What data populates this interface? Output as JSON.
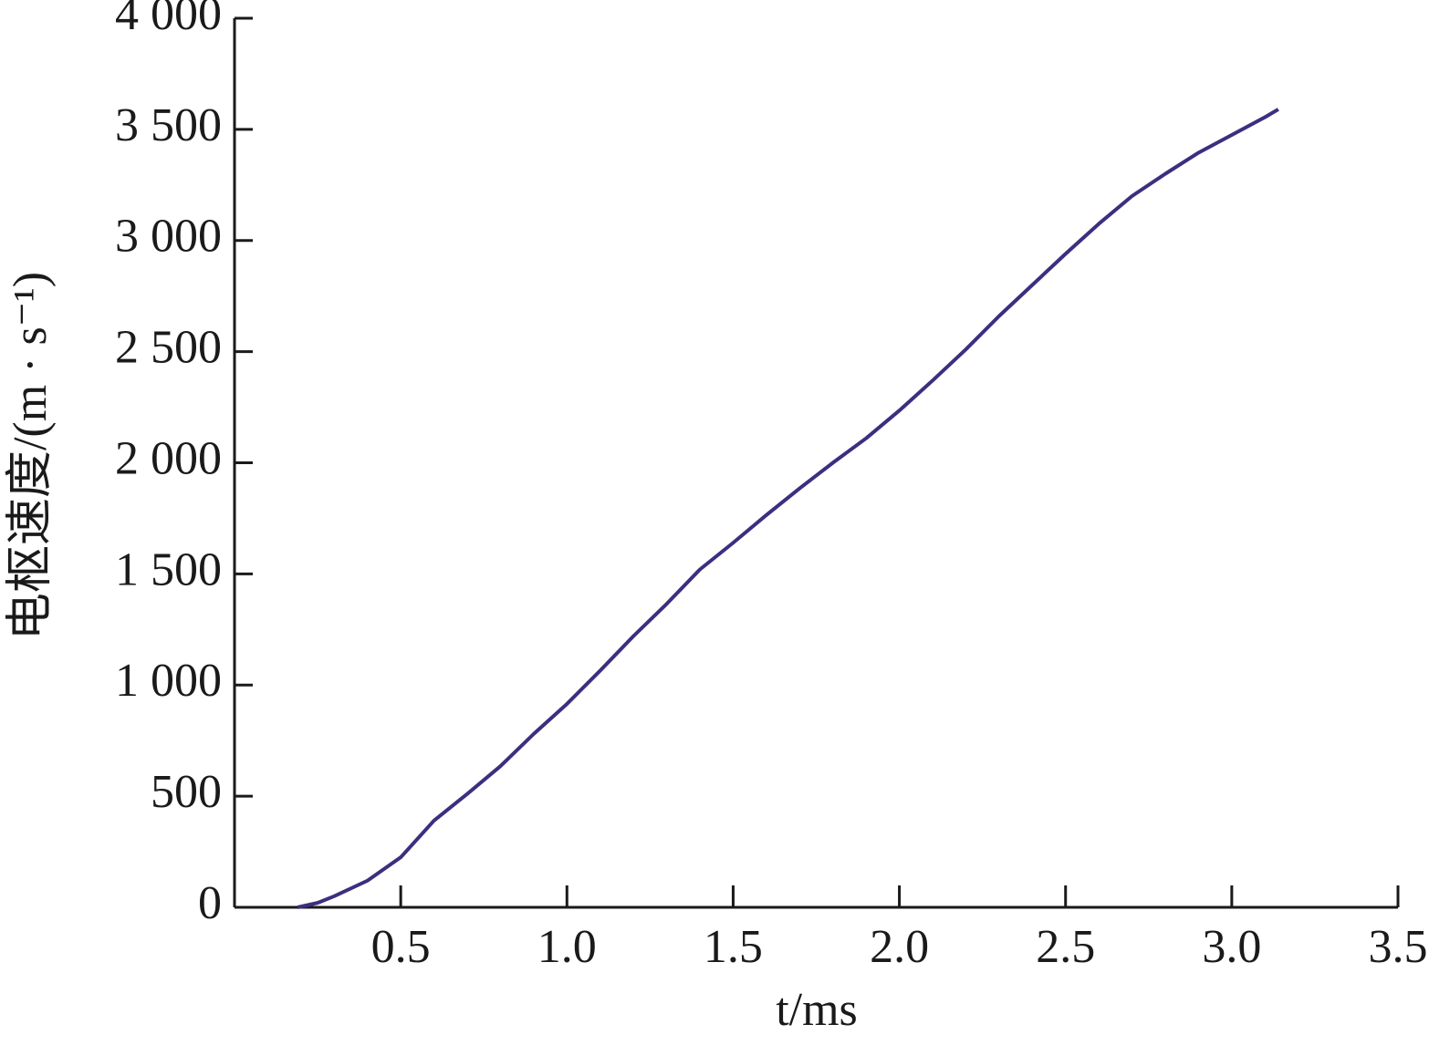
{
  "chart_data": {
    "type": "line",
    "xlabel": "t/ms",
    "ylabel": "电枢速度/(m · s⁻¹)",
    "xlim": [
      0,
      3.5
    ],
    "ylim": [
      0,
      4000
    ],
    "xticks": [
      0.5,
      {
        "value": 1,
        "label": "1.0"
      },
      1.5,
      {
        "value": 2,
        "label": "2.0"
      },
      2.5,
      {
        "value": 3,
        "label": "3.0"
      },
      3.5
    ],
    "yticks": [
      0,
      500,
      {
        "value": 1000,
        "label": "1 000"
      },
      {
        "value": 1500,
        "label": "1 500"
      },
      {
        "value": 2000,
        "label": "2 000"
      },
      {
        "value": 2500,
        "label": "2 500"
      },
      {
        "value": 3000,
        "label": "3 000"
      },
      {
        "value": 3500,
        "label": "3 500"
      },
      {
        "value": 4000,
        "label": "4 000"
      }
    ],
    "grid": false,
    "x": [
      0.19,
      0.25,
      0.3,
      0.4,
      0.5,
      0.6,
      0.7,
      0.8,
      0.9,
      1.0,
      1.1,
      1.2,
      1.3,
      1.4,
      1.5,
      1.6,
      1.7,
      1.8,
      1.9,
      2.0,
      2.1,
      2.2,
      2.3,
      2.4,
      2.5,
      2.6,
      2.7,
      2.8,
      2.9,
      3.0,
      3.1,
      3.14
    ],
    "series": [
      {
        "color": "#3b2f7f",
        "values": [
          0,
          20,
          50,
          120,
          225,
          390,
          510,
          635,
          780,
          915,
          1065,
          1220,
          1365,
          1520,
          1640,
          1765,
          1885,
          2000,
          2110,
          2235,
          2370,
          2510,
          2660,
          2800,
          2940,
          3075,
          3200,
          3300,
          3395,
          3475,
          3555,
          3590
        ]
      }
    ]
  }
}
